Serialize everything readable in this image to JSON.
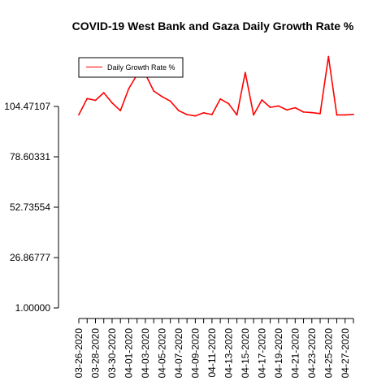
{
  "chart_data": {
    "type": "line",
    "title": "COVID-19 West Bank and Gaza Daily Growth Rate %",
    "xlabel": "",
    "ylabel": "",
    "ylim": [
      1.0,
      104.47107
    ],
    "yticks": [
      "1.00000",
      "26.86777",
      "52.73554",
      "78.60331",
      "104.47107"
    ],
    "ytick_values": [
      1.0,
      26.86777,
      52.73554,
      78.60331,
      104.47107
    ],
    "xtick_labels": [
      "03-26-2020",
      "03-28-2020",
      "03-30-2020",
      "04-01-2020",
      "04-03-2020",
      "04-05-2020",
      "04-07-2020",
      "04-09-2020",
      "04-11-2020",
      "04-13-2020",
      "04-15-2020",
      "04-17-2020",
      "04-19-2020",
      "04-21-2020",
      "04-23-2020",
      "04-25-2020",
      "04-27-2020"
    ],
    "legend": {
      "position": "top-left",
      "entries": [
        "Daily Growth Rate %"
      ]
    },
    "series": [
      {
        "name": "Daily Growth Rate %",
        "color": "#ff0000",
        "x": [
          "03-26-2020",
          "03-27-2020",
          "03-28-2020",
          "03-29-2020",
          "03-30-2020",
          "03-31-2020",
          "04-01-2020",
          "04-02-2020",
          "04-03-2020",
          "04-04-2020",
          "04-05-2020",
          "04-06-2020",
          "04-07-2020",
          "04-08-2020",
          "04-09-2020",
          "04-10-2020",
          "04-11-2020",
          "04-12-2020",
          "04-13-2020",
          "04-14-2020",
          "04-15-2020",
          "04-16-2020",
          "04-17-2020",
          "04-18-2020",
          "04-19-2020",
          "04-20-2020",
          "04-21-2020",
          "04-22-2020",
          "04-23-2020",
          "04-24-2020",
          "04-25-2020",
          "04-26-2020",
          "04-27-2020",
          "04-28-2020"
        ],
        "values": [
          100.2,
          108.5,
          107.6,
          111.5,
          106.3,
          102.3,
          113.6,
          120.8,
          121.1,
          112.4,
          109.5,
          107.2,
          102.3,
          100.3,
          99.6,
          101.2,
          100.3,
          108.3,
          105.9,
          100.1,
          121.9,
          100.1,
          107.8,
          104.0,
          104.7,
          102.7,
          103.8,
          101.6,
          101.3,
          100.8,
          130.1,
          100.1,
          100.1,
          100.4
        ]
      }
    ]
  }
}
